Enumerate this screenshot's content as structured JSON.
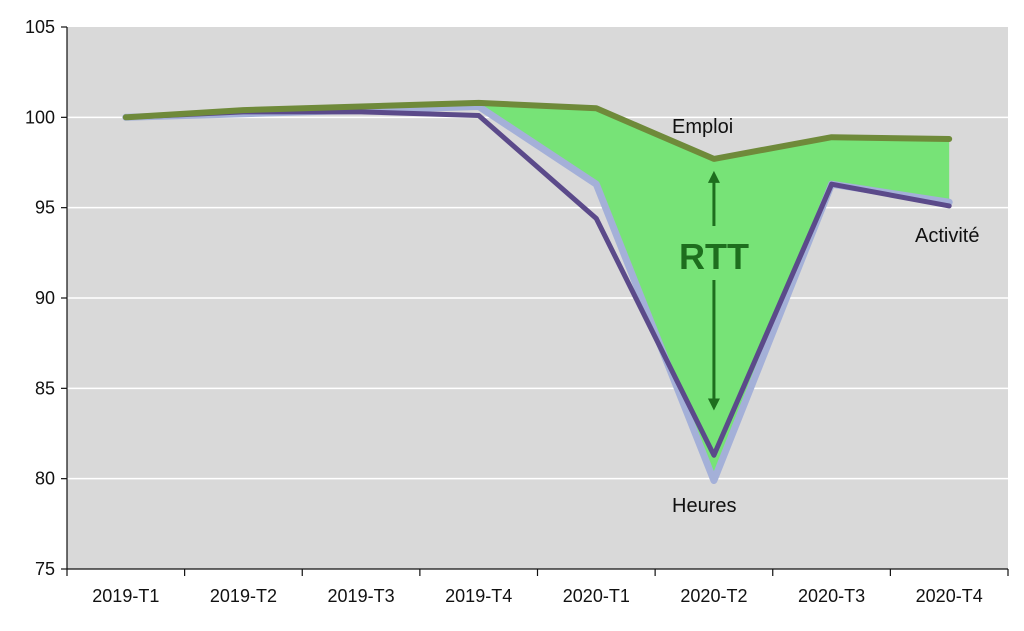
{
  "chart_data": {
    "type": "line",
    "categories": [
      "2019-T1",
      "2019-T2",
      "2019-T3",
      "2019-T4",
      "2020-T1",
      "2020-T2",
      "2020-T3",
      "2020-T4"
    ],
    "series": [
      {
        "name": "Emploi",
        "values": [
          100.0,
          100.4,
          100.6,
          100.8,
          100.5,
          97.7,
          98.9,
          98.8
        ],
        "color": "#6f8a3a"
      },
      {
        "name": "Activité",
        "values": [
          100.0,
          100.3,
          100.3,
          100.1,
          94.4,
          81.3,
          96.3,
          95.1
        ],
        "color": "#5b4a8a"
      },
      {
        "name": "Heures",
        "values": [
          100.0,
          100.2,
          100.4,
          100.6,
          96.3,
          79.9,
          96.3,
          95.3
        ],
        "color": "#a4b0d8"
      }
    ],
    "fill_between": {
      "upper": "Emploi",
      "lower": "Heures",
      "from_index": 3,
      "color": "#77e377"
    },
    "annotations": {
      "emploi": "Emploi",
      "activite": "Activité",
      "heures": "Heures",
      "rtt": "RTT"
    },
    "y_ticks": [
      "75",
      "80",
      "85",
      "90",
      "95",
      "100",
      "105"
    ],
    "ylim": [
      75,
      105
    ],
    "grid": true,
    "colors": {
      "plot_bg": "#d9d9d9",
      "grid": "#ffffff",
      "axis": "#111111",
      "arrow": "#1e6e1e"
    }
  }
}
